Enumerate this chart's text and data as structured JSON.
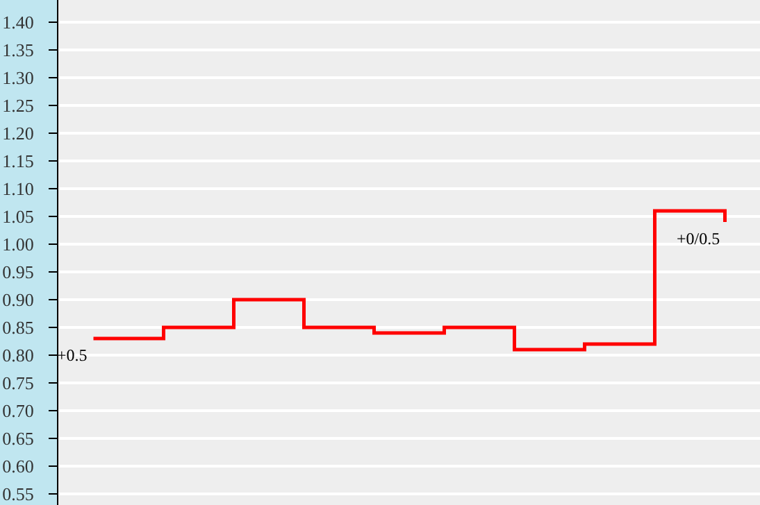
{
  "chart_data": {
    "type": "step",
    "categories": [
      null,
      null,
      null,
      null,
      null,
      null,
      null,
      null,
      null,
      null
    ],
    "series": [
      {
        "color": "#ff0000",
        "values": [
          0.83,
          0.85,
          0.9,
          0.85,
          0.84,
          0.85,
          0.81,
          0.82,
          1.06,
          1.04
        ]
      }
    ],
    "ylim": [
      0.53,
      1.44
    ],
    "yticks": [
      {
        "value": 0.55,
        "label": "0.55"
      },
      {
        "value": 0.6,
        "label": "0.60"
      },
      {
        "value": 0.65,
        "label": "0.65"
      },
      {
        "value": 0.7,
        "label": "0.70"
      },
      {
        "value": 0.75,
        "label": "0.75"
      },
      {
        "value": 0.8,
        "label": "0.80"
      },
      {
        "value": 0.85,
        "label": "0.85"
      },
      {
        "value": 0.9,
        "label": "0.90"
      },
      {
        "value": 0.95,
        "label": "0.95"
      },
      {
        "value": 1.0,
        "label": "1.00"
      },
      {
        "value": 1.05,
        "label": "1.05"
      },
      {
        "value": 1.1,
        "label": "1.10"
      },
      {
        "value": 1.15,
        "label": "1.15"
      },
      {
        "value": 1.2,
        "label": "1.20"
      },
      {
        "value": 1.25,
        "label": "1.25"
      },
      {
        "value": 1.3,
        "label": "1.30"
      },
      {
        "value": 1.35,
        "label": "1.35"
      },
      {
        "value": 1.4,
        "label": "1.40"
      }
    ],
    "grid": "y",
    "tick_labels": "y",
    "legend": false,
    "annotations": [
      "+0.5",
      "+0/0.5"
    ]
  }
}
